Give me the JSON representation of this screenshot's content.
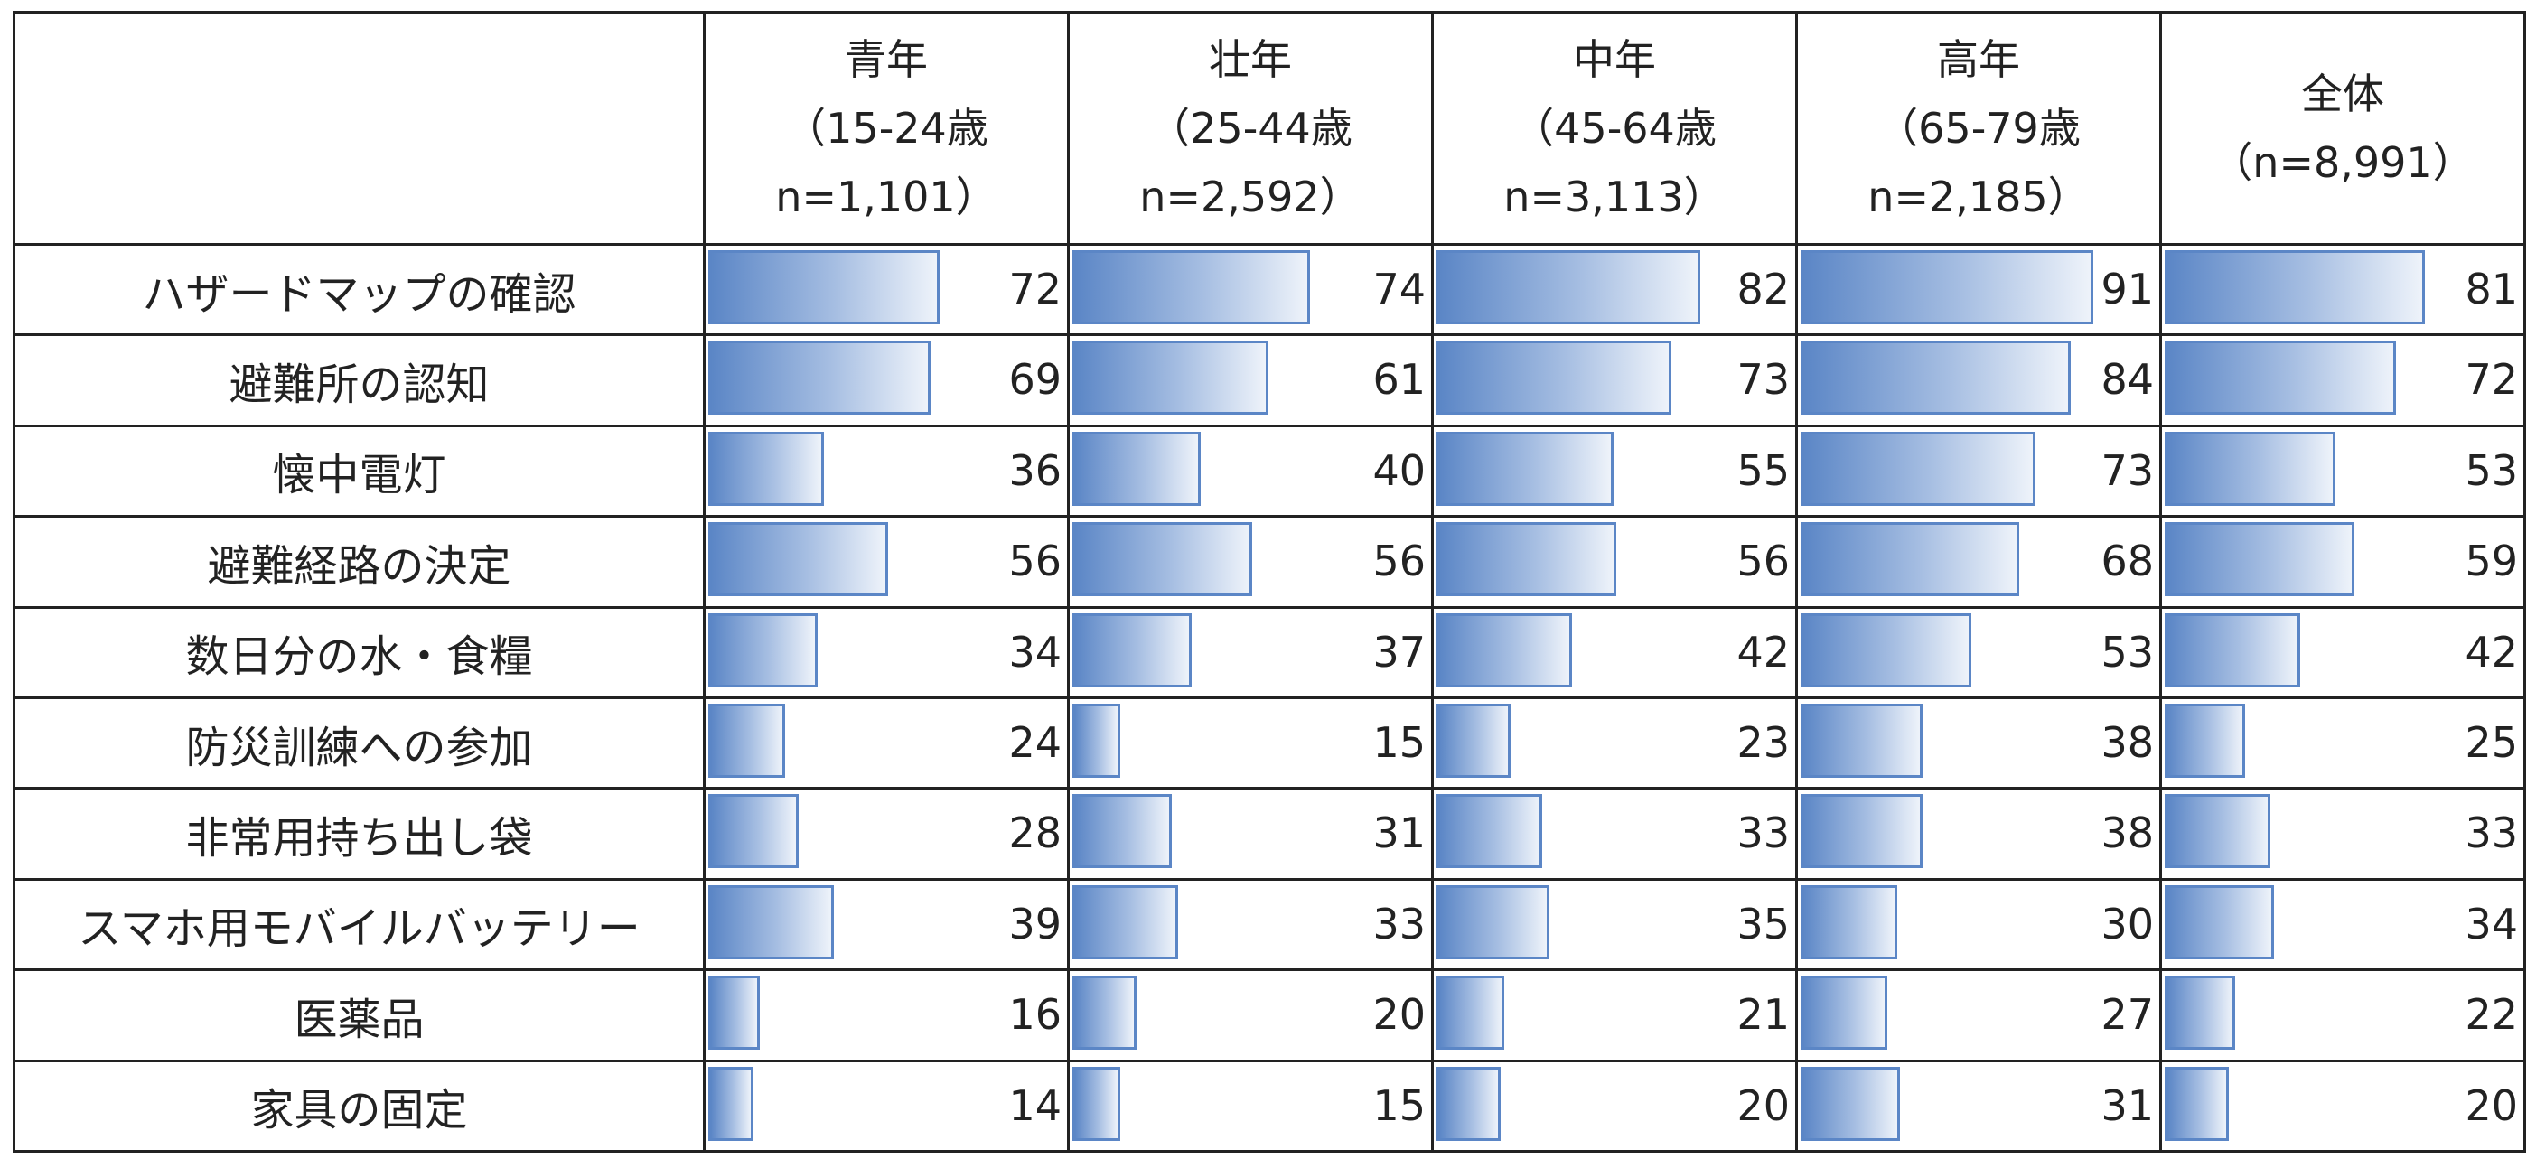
{
  "chart_data": {
    "type": "table",
    "title": "",
    "bar_max": 100,
    "colors": {
      "bar_fill_start": "#5b86c6",
      "bar_fill_end": "#eef3fa",
      "bar_border": "#5b86c6",
      "grid": "#222222"
    },
    "columns": [
      {
        "lines": [
          "青年",
          "（15-24歳",
          "n=1,101）"
        ]
      },
      {
        "lines": [
          "壮年",
          "（25-44歳",
          "n=2,592）"
        ]
      },
      {
        "lines": [
          "中年",
          "（45-64歳",
          "n=3,113）"
        ]
      },
      {
        "lines": [
          "高年",
          "（65-79歳",
          "n=2,185）"
        ]
      },
      {
        "lines": [
          "全体",
          "（n=8,991）"
        ]
      }
    ],
    "rows": [
      {
        "label": "ハザードマップの確認",
        "values": [
          72,
          74,
          82,
          91,
          81
        ]
      },
      {
        "label": "避難所の認知",
        "values": [
          69,
          61,
          73,
          84,
          72
        ]
      },
      {
        "label": "懐中電灯",
        "values": [
          36,
          40,
          55,
          73,
          53
        ]
      },
      {
        "label": "避難経路の決定",
        "values": [
          56,
          56,
          56,
          68,
          59
        ]
      },
      {
        "label": "数日分の水・食糧",
        "values": [
          34,
          37,
          42,
          53,
          42
        ]
      },
      {
        "label": "防災訓練への参加",
        "values": [
          24,
          15,
          23,
          38,
          25
        ]
      },
      {
        "label": "非常用持ち出し袋",
        "values": [
          28,
          31,
          33,
          38,
          33
        ]
      },
      {
        "label": "スマホ用モバイルバッテリー",
        "values": [
          39,
          33,
          35,
          30,
          34
        ]
      },
      {
        "label": "医薬品",
        "values": [
          16,
          20,
          21,
          27,
          22
        ]
      },
      {
        "label": "家具の固定",
        "values": [
          14,
          15,
          20,
          31,
          20
        ]
      }
    ]
  }
}
